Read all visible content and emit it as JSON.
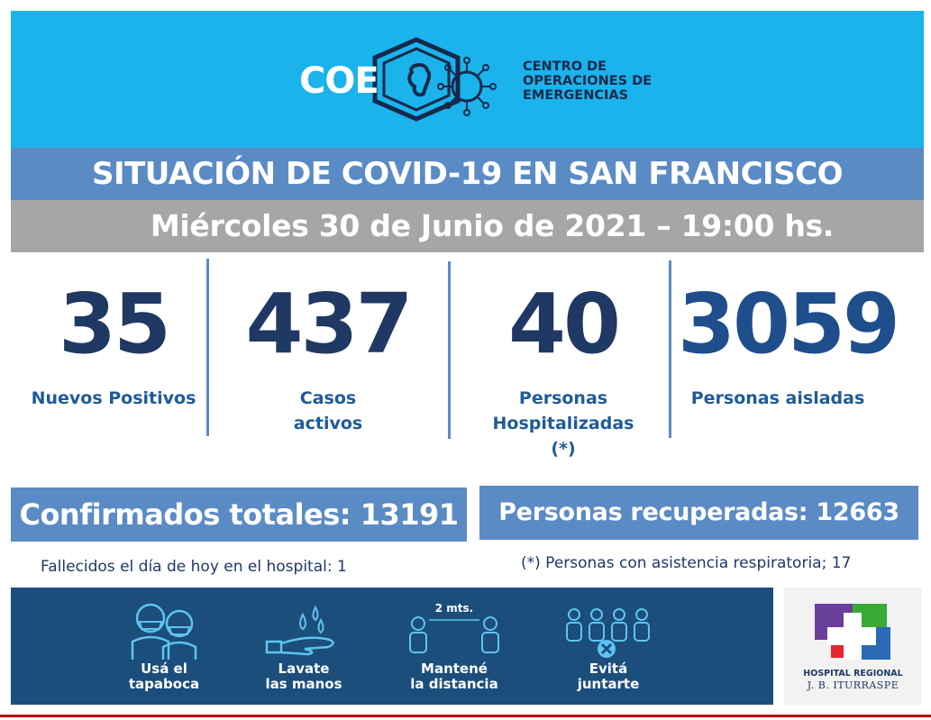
{
  "header": {
    "logo_text": "COE",
    "org_name_lines": [
      "CENTRO DE",
      "OPERACIONES DE",
      "EMERGENCIAS"
    ]
  },
  "title": "SITUACIÓN DE COVID-19 EN SAN FRANCISCO",
  "date": "Miércoles 30 de Junio de 2021 – 19:00 hs.",
  "stats": [
    {
      "value": "35",
      "label_lines": [
        "Nuevos Positivos"
      ]
    },
    {
      "value": "437",
      "label_lines": [
        "Casos",
        "activos"
      ]
    },
    {
      "value": "40",
      "label_lines": [
        "Personas",
        "Hospitalizadas",
        "(*)"
      ]
    },
    {
      "value": "3059",
      "label_lines": [
        "Personas aisladas"
      ]
    }
  ],
  "totals": {
    "confirmados": "Confirmados totales: 13191",
    "recuperadas": "Personas recuperadas: 12663"
  },
  "notes": {
    "fallecidos": "Fallecidos el día de hoy en el hospital: 1",
    "respiratoria": "(*) Personas con asistencia respiratoria; 17"
  },
  "prevention": [
    {
      "icon": "face-mask-icon",
      "label_lines": [
        "Usá el",
        "tapaboca"
      ]
    },
    {
      "icon": "hand-washing-icon",
      "label_lines": [
        "Lavate",
        "las manos"
      ]
    },
    {
      "icon": "social-distance-icon",
      "label_lines": [
        "Mantené",
        "la distancia"
      ],
      "distance_label": "2 mts."
    },
    {
      "icon": "no-gathering-icon",
      "label_lines": [
        "Evitá",
        "juntarte"
      ]
    }
  ],
  "hospital": {
    "name": "HOSPITAL REGIONAL",
    "subname": "J. B. ITURRASPE"
  },
  "colors": {
    "header_bg": "#1ab3ec",
    "title_bg": "#5b8bc5",
    "date_bg": "#a6a6a6",
    "number_color": "#1f3864",
    "label_color": "#1f5b99",
    "banner_bg": "#1b4e7b"
  }
}
